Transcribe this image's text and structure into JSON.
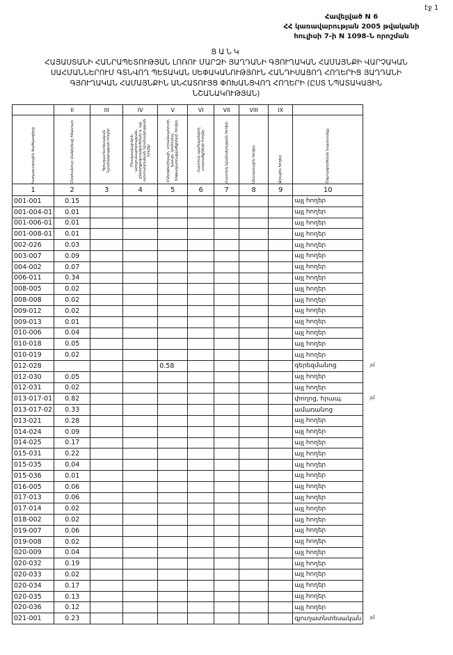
{
  "page_number": "էջ 1",
  "annex": [
    "Հավելված N 6",
    "ՀՀ կառավարության 2005 թվականի",
    "հուլիսի 7-ի N 1098-Ն որոշման"
  ],
  "title": [
    "ՑԱՆԿ",
    "ՀԱՅԱՍՏԱՆԻ ՀԱՆՐԱՊԵՏՈՒԹՅԱՆ ԼՈՌՈՒ ՄԱՐԶԻ ՅԱՂԴԱՆԻ ԳՅՈՒՂԱԿԱՆ ՀԱՄԱՅՆՔԻ ՎԱՐՉԱԿԱՆ",
    "ՍԱՀՄԱՆՆԵՐՈՒՄ ԳՏՆՎՈՂ ՊԵՏԱԿԱՆ ՍԵՓԱԿԱՆՈՒԹՅՈՒՆ ՀԱՆԴԻՍԱՑՈՂ ՀՈՂԵՐԻՑ ՅԱՂԴԱՆԻ",
    "ԳՅՈՒՂԱԿԱՆ ՀԱՄԱՅՆՔԻՆ ԱՆՀԱՏՈՒՅՑ ՓՈԽԱՆՑՎՈՂ ՀՈՂԵՐԻ (ԸՍՏ ՆՊԱՏԱԿԱՅԻՆ",
    "ՆՇԱՆԱԿՈՒԹՅԱՆ)"
  ],
  "roman": [
    "",
    "II",
    "III",
    "IV",
    "V",
    "VI",
    "VII",
    "VIII",
    "IX",
    ""
  ],
  "headers": [
    "Կադաստրային ծածկագիրը",
    "Ընդհանուր մակերեսը հեկտար",
    "Գյուղատնտեսական նշանակության հողեր",
    "Բնակավայրերի, արդյունաբերության, ընդերքօգտագործման և այլ արտադրական նշանակության հողեր",
    "Էներգետիկայի, տրանսպորտի, կապի, կոմունալ ենթակառուցվածքների հողեր",
    "Հատուկ պահպանվող տարածքների հողեր",
    "Հատուկ նշանակության հողեր",
    "Անտառային հողեր",
    "Ջրային հողեր",
    "Օգտագործման նպատակը"
  ],
  "col_numbers": [
    "1",
    "2",
    "3",
    "4",
    "5",
    "6",
    "7",
    "8",
    "9",
    "10"
  ],
  "rows": [
    [
      "001-001",
      "0.15",
      "",
      "",
      "",
      "",
      "",
      "",
      "",
      "այլ հողեր"
    ],
    [
      "001-004-01",
      "0.01",
      "",
      "",
      "",
      "",
      "",
      "",
      "",
      "այլ հողեր"
    ],
    [
      "001-006-01",
      "0.01",
      "",
      "",
      "",
      "",
      "",
      "",
      "",
      "այլ հողեր"
    ],
    [
      "001-008-01",
      "0.01",
      "",
      "",
      "",
      "",
      "",
      "",
      "",
      "այլ հողեր"
    ],
    [
      "002-026",
      "0.03",
      "",
      "",
      "",
      "",
      "",
      "",
      "",
      "այլ հողեր"
    ],
    [
      "003-007",
      "0.09",
      "",
      "",
      "",
      "",
      "",
      "",
      "",
      "այլ հողեր"
    ],
    [
      "004-002",
      "0.07",
      "",
      "",
      "",
      "",
      "",
      "",
      "",
      "այլ հողեր"
    ],
    [
      "006-011",
      "0.34",
      "",
      "",
      "",
      "",
      "",
      "",
      "",
      "այլ հողեր"
    ],
    [
      "008-005",
      "0.02",
      "",
      "",
      "",
      "",
      "",
      "",
      "",
      "այլ հողեր"
    ],
    [
      "008-008",
      "0.02",
      "",
      "",
      "",
      "",
      "",
      "",
      "",
      "այլ հողեր"
    ],
    [
      "009-012",
      "0.02",
      "",
      "",
      "",
      "",
      "",
      "",
      "",
      "այլ հողեր"
    ],
    [
      "009-013",
      "0.01",
      "",
      "",
      "",
      "",
      "",
      "",
      "",
      "այլ հողեր"
    ],
    [
      "010-006",
      "0.04",
      "",
      "",
      "",
      "",
      "",
      "",
      "",
      "այլ հողեր"
    ],
    [
      "010-018",
      "0.05",
      "",
      "",
      "",
      "",
      "",
      "",
      "",
      "այլ հողեր"
    ],
    [
      "010-019",
      "0.02",
      "",
      "",
      "",
      "",
      "",
      "",
      "",
      "այլ հողեր"
    ],
    [
      "012-028",
      "",
      "",
      "",
      "0.58",
      "",
      "",
      "",
      "",
      "գերեզմանոց"
    ],
    [
      "012-030",
      "0.05",
      "",
      "",
      "",
      "",
      "",
      "",
      "",
      "այլ հողեր"
    ],
    [
      "012-031",
      "0.02",
      "",
      "",
      "",
      "",
      "",
      "",
      "",
      "այլ հողեր"
    ],
    [
      "013-017-01",
      "0.82",
      "",
      "",
      "",
      "",
      "",
      "",
      "",
      "փողոց, հրապ."
    ],
    [
      "013-017-02",
      "0.33",
      "",
      "",
      "",
      "",
      "",
      "",
      "",
      "ամառանոց"
    ],
    [
      "013-021",
      "0.28",
      "",
      "",
      "",
      "",
      "",
      "",
      "",
      "այլ հողեր"
    ],
    [
      "014-024",
      "0.09",
      "",
      "",
      "",
      "",
      "",
      "",
      "",
      "այլ հողեր"
    ],
    [
      "014-025",
      "0.17",
      "",
      "",
      "",
      "",
      "",
      "",
      "",
      "այլ հողեր"
    ],
    [
      "015-031",
      "0.22",
      "",
      "",
      "",
      "",
      "",
      "",
      "",
      "այլ հողեր"
    ],
    [
      "015-035",
      "0.04",
      "",
      "",
      "",
      "",
      "",
      "",
      "",
      "այլ հողեր"
    ],
    [
      "015-036",
      "0.01",
      "",
      "",
      "",
      "",
      "",
      "",
      "",
      "այլ հողեր"
    ],
    [
      "016-005",
      "0.06",
      "",
      "",
      "",
      "",
      "",
      "",
      "",
      "այլ հողեր"
    ],
    [
      "017-013",
      "0.06",
      "",
      "",
      "",
      "",
      "",
      "",
      "",
      "այլ հողեր"
    ],
    [
      "017-014",
      "0.02",
      "",
      "",
      "",
      "",
      "",
      "",
      "",
      "այլ հողեր"
    ],
    [
      "018-002",
      "0.02",
      "",
      "",
      "",
      "",
      "",
      "",
      "",
      "այլ հողեր"
    ],
    [
      "019-007",
      "0.06",
      "",
      "",
      "",
      "",
      "",
      "",
      "",
      "այլ հողեր"
    ],
    [
      "019-008",
      "0.02",
      "",
      "",
      "",
      "",
      "",
      "",
      "",
      "այլ հողեր"
    ],
    [
      "020-009",
      "0.04",
      "",
      "",
      "",
      "",
      "",
      "",
      "",
      "այլ հողեր"
    ],
    [
      "020-032",
      "0.19",
      "",
      "",
      "",
      "",
      "",
      "",
      "",
      "այլ հողեր"
    ],
    [
      "020-033",
      "0.02",
      "",
      "",
      "",
      "",
      "",
      "",
      "",
      "այլ հողեր"
    ],
    [
      "020-034",
      "0.17",
      "",
      "",
      "",
      "",
      "",
      "",
      "",
      "այլ հողեր"
    ],
    [
      "020-035",
      "0.13",
      "",
      "",
      "",
      "",
      "",
      "",
      "",
      "այլ հողեր"
    ],
    [
      "020-036",
      "0.12",
      "",
      "",
      "",
      "",
      "",
      "",
      "",
      "այլ հողեր"
    ],
    [
      "021-001",
      "0.23",
      "",
      "",
      "",
      "",
      "",
      "",
      "",
      "գյուղատնտեսական"
    ]
  ],
  "margin_notes": [
    {
      "row": 15,
      "text": "յմ"
    },
    {
      "row": 18,
      "text": "յմ"
    },
    {
      "row": 38,
      "text": "յմ"
    }
  ]
}
